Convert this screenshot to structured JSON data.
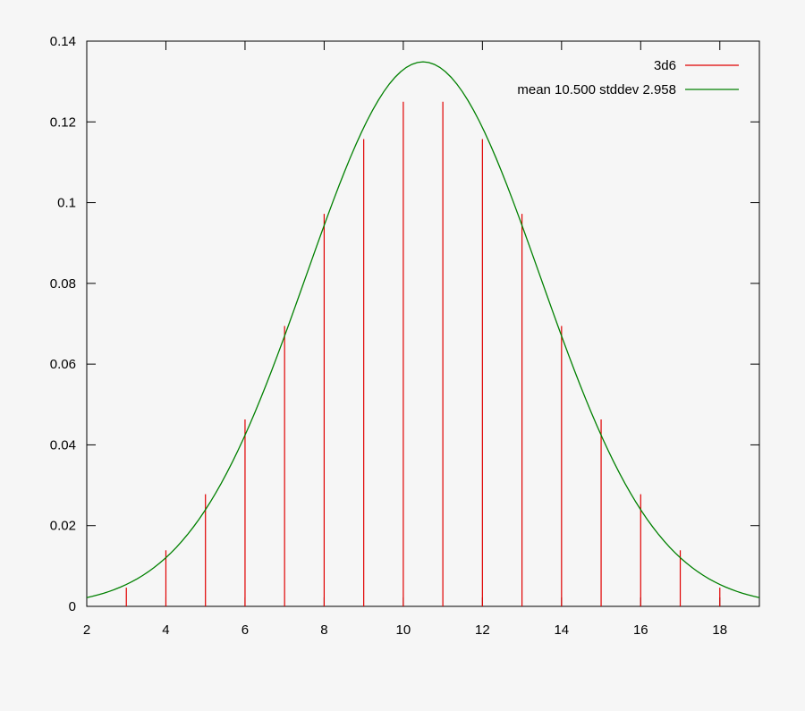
{
  "chart_data": {
    "type": "bar",
    "xlim": [
      2,
      19
    ],
    "ylim": [
      0,
      0.14
    ],
    "x_ticks": [
      2,
      4,
      6,
      8,
      10,
      12,
      14,
      16,
      18
    ],
    "x_tick_labels": [
      "2",
      "4",
      "6",
      "8",
      "10",
      "12",
      "14",
      "16",
      "18"
    ],
    "y_ticks": [
      0,
      0.02,
      0.04,
      0.06,
      0.08,
      0.1,
      0.12,
      0.14
    ],
    "y_tick_labels": [
      "0",
      "0.02",
      "0.04",
      "0.06",
      "0.08",
      "0.1",
      "0.12",
      "0.14"
    ],
    "grid": false,
    "legend_position": "top-right",
    "series": [
      {
        "name": "3d6",
        "style": "impulses",
        "color": "#e00000",
        "x": [
          3,
          4,
          5,
          6,
          7,
          8,
          9,
          10,
          11,
          12,
          13,
          14,
          15,
          16,
          17,
          18
        ],
        "values": [
          0.00463,
          0.01389,
          0.02778,
          0.0463,
          0.06944,
          0.09722,
          0.11574,
          0.125,
          0.125,
          0.11574,
          0.09722,
          0.06944,
          0.0463,
          0.02778,
          0.01389,
          0.00463
        ]
      },
      {
        "name": "mean 10.500 stddev 2.958",
        "style": "line",
        "color": "#008000",
        "function": "normal",
        "mean": 10.5,
        "stddev": 2.958,
        "x_range": [
          2,
          19
        ]
      }
    ]
  }
}
